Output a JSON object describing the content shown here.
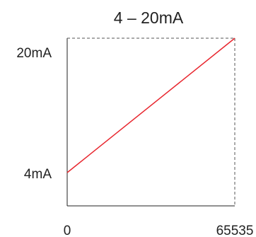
{
  "chart_data": {
    "type": "line",
    "title": "4 – 20mA",
    "x_tick_labels": [
      "0",
      "65535"
    ],
    "y_tick_labels": [
      "4mA",
      "20mA"
    ],
    "xlim": [
      0,
      65535
    ],
    "ylim": [
      4,
      20
    ],
    "series": [
      {
        "x": [
          0,
          65535
        ],
        "y": [
          4,
          20
        ],
        "color": "#e8262e"
      }
    ],
    "colors": {
      "axis": "#222222",
      "dashed_border": "#555555",
      "line": "#e8262e"
    }
  }
}
